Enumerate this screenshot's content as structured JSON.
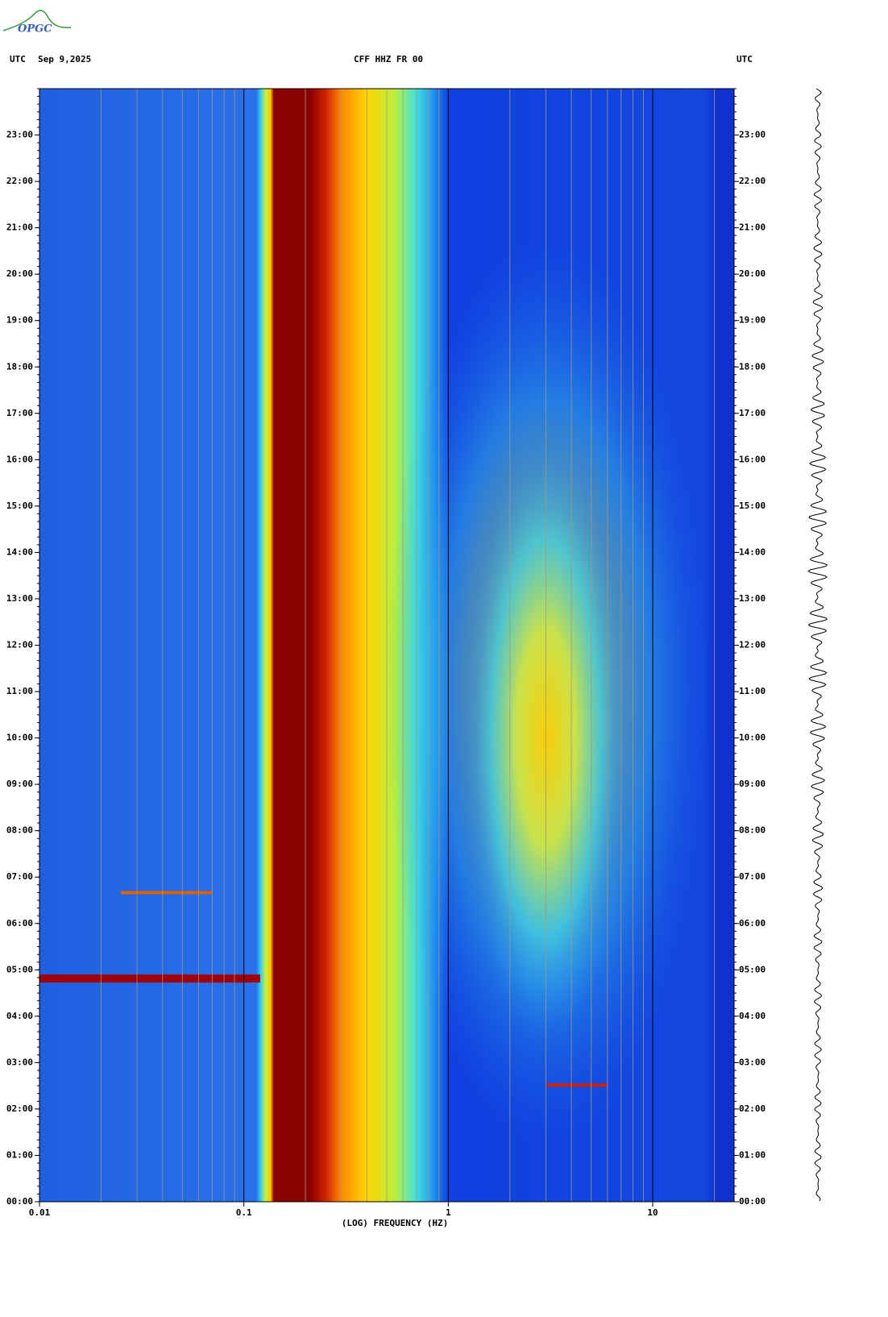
{
  "header": {
    "logo": "OPGC",
    "zone_left": "UTC",
    "date": "Sep 9,2025",
    "station": "CFF HHZ FR 00",
    "zone_right": "UTC"
  },
  "chart_data": {
    "type": "spectrogram",
    "xlabel": "(LOG) FREQUENCY (HZ)",
    "xscale": "log",
    "xlim": [
      0.01,
      25
    ],
    "xticks": [
      0.01,
      0.1,
      1,
      10
    ],
    "ylim": [
      0,
      24
    ],
    "yticks": [
      {
        "value": 0,
        "label": "00:00"
      },
      {
        "value": 1,
        "label": "01:00"
      },
      {
        "value": 2,
        "label": "02:00"
      },
      {
        "value": 3,
        "label": "03:00"
      },
      {
        "value": 4,
        "label": "04:00"
      },
      {
        "value": 5,
        "label": "05:00"
      },
      {
        "value": 6,
        "label": "06:00"
      },
      {
        "value": 7,
        "label": "07:00"
      },
      {
        "value": 8,
        "label": "08:00"
      },
      {
        "value": 9,
        "label": "09:00"
      },
      {
        "value": 10,
        "label": "10:00"
      },
      {
        "value": 11,
        "label": "11:00"
      },
      {
        "value": 12,
        "label": "12:00"
      },
      {
        "value": 13,
        "label": "13:00"
      },
      {
        "value": 14,
        "label": "14:00"
      },
      {
        "value": 15,
        "label": "15:00"
      },
      {
        "value": 16,
        "label": "16:00"
      },
      {
        "value": 17,
        "label": "17:00"
      },
      {
        "value": 18,
        "label": "18:00"
      },
      {
        "value": 19,
        "label": "19:00"
      },
      {
        "value": 20,
        "label": "20:00"
      },
      {
        "value": 21,
        "label": "21:00"
      },
      {
        "value": 22,
        "label": "22:00"
      },
      {
        "value": 23,
        "label": "23:00"
      }
    ]
  }
}
